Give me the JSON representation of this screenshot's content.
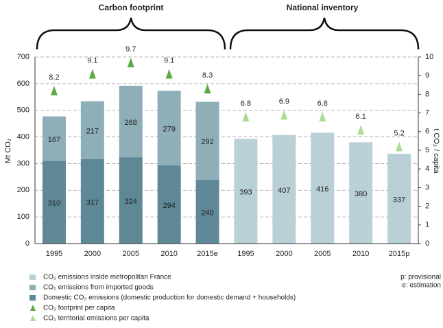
{
  "chart_data": {
    "type": "bar",
    "group_labels": [
      "Carbon footprint",
      "National inventory"
    ],
    "categories": [
      "1995",
      "2000",
      "2005",
      "2010",
      "2015e",
      "1995",
      "2000",
      "2005",
      "2010",
      "2015p"
    ],
    "series": [
      {
        "name": "CO₂ emissions inside metropolitan France",
        "color": "#b9d0d7",
        "values": [
          null,
          null,
          null,
          null,
          null,
          393,
          407,
          416,
          380,
          337
        ]
      },
      {
        "name": "CO₂ emissions from imported goods",
        "color": "#8eaeb8",
        "values": [
          167,
          217,
          268,
          279,
          292,
          null,
          null,
          null,
          null,
          null
        ]
      },
      {
        "name": "Domestic CO₂ emissions (domestic production for domestic demand + households)",
        "color": "#5e8896",
        "values": [
          310,
          317,
          324,
          294,
          240,
          null,
          null,
          null,
          null,
          null
        ]
      },
      {
        "name": "CO₂ footprint per capita",
        "color": "#5aab45",
        "marker": "triangle",
        "axis": "y2",
        "values": [
          8.2,
          9.1,
          9.7,
          9.1,
          8.3,
          null,
          null,
          null,
          null,
          null
        ]
      },
      {
        "name": "CO₂ territorial emissions per capita",
        "color": "#addb94",
        "marker": "triangle",
        "axis": "y2",
        "values": [
          null,
          null,
          null,
          null,
          null,
          6.8,
          6.9,
          6.8,
          6.1,
          5.2
        ]
      }
    ],
    "y_label": "Mt CO₂",
    "y2_label": "t CO₂ / capita",
    "ylim": [
      0,
      700
    ],
    "yticks": [
      0,
      100,
      200,
      300,
      400,
      500,
      600,
      700
    ],
    "y2lim": [
      0,
      10
    ],
    "y2ticks": [
      0,
      1,
      2,
      3,
      4,
      5,
      6,
      7,
      8,
      9,
      10
    ],
    "grid": true,
    "notes": [
      "p: provisional",
      "e: estimation"
    ]
  }
}
